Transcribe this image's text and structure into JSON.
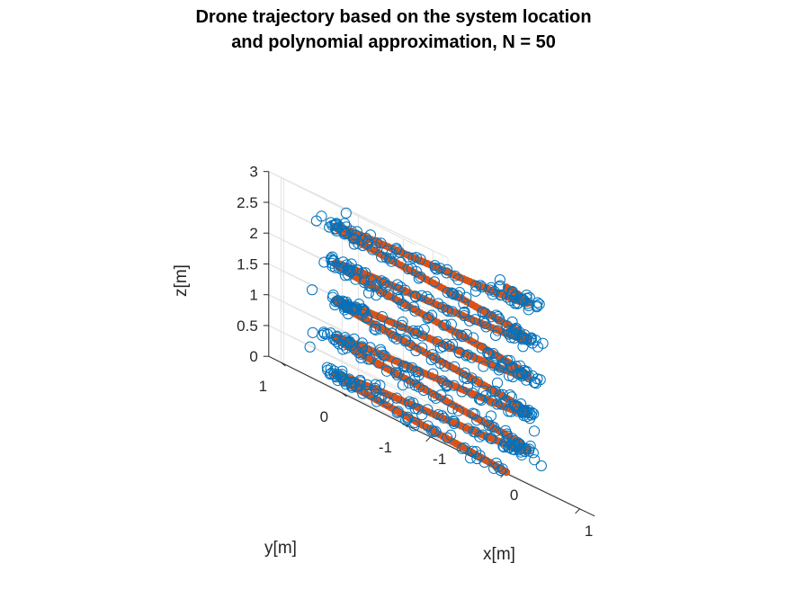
{
  "chart_data": {
    "type": "scatter3d",
    "title": [
      "Drone trajectory based on the system location",
      "and polynomial approximation, N = 50"
    ],
    "xlabel": "x[m]",
    "ylabel": "y[m]",
    "zlabel": "z[m]",
    "xlim": [
      -1.2,
      1.2
    ],
    "ylim": [
      -1.2,
      1.2
    ],
    "zlim": [
      0,
      3
    ],
    "xticks": [
      "-1",
      "0",
      "1"
    ],
    "yticks": [
      "-1",
      "0",
      "1"
    ],
    "zticks": [
      "0",
      "0.5",
      "1",
      "1.5",
      "2",
      "2.5",
      "3"
    ],
    "grid": true,
    "view": "3-D oblique (x axis front-right, y axis front-left)",
    "helix": {
      "radius": 1.0,
      "turns": 5,
      "z_start": 0.0,
      "z_end": 3.0,
      "x_center": 0.0,
      "y_center": 0.0
    },
    "series": [
      {
        "kind": "measured",
        "marker": "open circle",
        "color": "#0072BD",
        "count": 600,
        "noise_std": 0.07
      },
      {
        "kind": "approximation",
        "marker": "filled dot line",
        "color": "#D95319",
        "count": 900
      }
    ]
  }
}
